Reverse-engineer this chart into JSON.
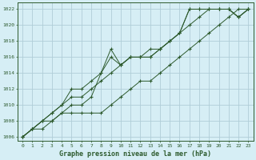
{
  "bg_color": "#d6eef5",
  "grid_color": "#b0cdd8",
  "line_color": "#2d5a2d",
  "title": "Graphe pression niveau de la mer (hPa)",
  "xlim": [
    -0.5,
    23.5
  ],
  "ylim": [
    1005.5,
    1022.8
  ],
  "yticks": [
    1006,
    1008,
    1010,
    1012,
    1014,
    1016,
    1018,
    1020,
    1022
  ],
  "xticks": [
    0,
    1,
    2,
    3,
    4,
    5,
    6,
    7,
    8,
    9,
    10,
    11,
    12,
    13,
    14,
    15,
    16,
    17,
    18,
    19,
    20,
    21,
    22,
    23
  ],
  "series": [
    [
      1006,
      1007,
      1008,
      1009,
      1010,
      1011,
      1011,
      1012,
      1013,
      1014,
      1015,
      1016,
      1016,
      1016,
      1017,
      1018,
      1019,
      1020,
      1021,
      1022,
      1022,
      1022,
      1021,
      1022
    ],
    [
      1006,
      1007,
      1008,
      1008,
      1009,
      1010,
      1010,
      1011,
      1014,
      1016,
      1015,
      1016,
      1016,
      1017,
      1017,
      1018,
      1019,
      1022,
      1022,
      1022,
      1022,
      1022,
      1021,
      1022
    ],
    [
      1006,
      1007,
      1008,
      1009,
      1010,
      1012,
      1012,
      1013,
      1014,
      1017,
      1015,
      1016,
      1016,
      1016,
      1017,
      1018,
      1019,
      1022,
      1022,
      1022,
      1022,
      1022,
      1021,
      1022
    ],
    [
      1006,
      1007,
      1007,
      1008,
      1009,
      1009,
      1009,
      1009,
      1009,
      1010,
      1011,
      1012,
      1013,
      1013,
      1014,
      1015,
      1016,
      1017,
      1018,
      1019,
      1020,
      1021,
      1022,
      1022
    ]
  ]
}
